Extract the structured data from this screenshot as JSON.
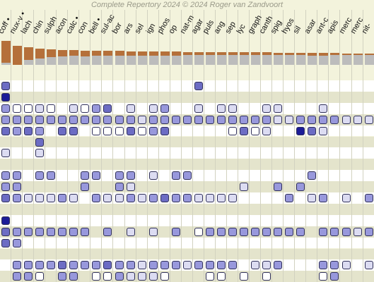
{
  "copyright": "Complete Repertory 2024 © 2024 Roger van Zandvoort",
  "colors": {
    "background": "#f3f3dc",
    "row_alt": "#ffffff",
    "row_section": "#e4e4cc",
    "score_bar_top": "#b5703a",
    "score_bar_bottom": "#bcbcbc",
    "grade_1": "#dcdcf2",
    "grade_2": "#9898dc",
    "grade_3": "#6c6cc4",
    "grade_4": "#1c1c98",
    "grade_0": "#ffffff"
  },
  "remedies": [
    {
      "name": "coff",
      "dot": true,
      "score": 0.84,
      "weight": 0.42
    },
    {
      "name": "nux-v",
      "dot": true,
      "score": 0.68,
      "weight": 0.56
    },
    {
      "name": "lach",
      "dot": false,
      "score": 0.62,
      "weight": 0.32
    },
    {
      "name": "chin",
      "dot": false,
      "score": 0.58,
      "weight": 0.28
    },
    {
      "name": "sulph",
      "dot": false,
      "score": 0.55,
      "weight": 0.22
    },
    {
      "name": "acon",
      "dot": false,
      "score": 0.52,
      "weight": 0.2
    },
    {
      "name": "calc",
      "dot": true,
      "score": 0.52,
      "weight": 0.18
    },
    {
      "name": "con",
      "dot": false,
      "score": 0.5,
      "weight": 0.18
    },
    {
      "name": "bell",
      "dot": true,
      "score": 0.5,
      "weight": 0.17
    },
    {
      "name": "sul-ac",
      "dot": false,
      "score": 0.5,
      "weight": 0.17
    },
    {
      "name": "bor",
      "dot": false,
      "score": 0.5,
      "weight": 0.16
    },
    {
      "name": "ars",
      "dot": false,
      "score": 0.48,
      "weight": 0.15
    },
    {
      "name": "sel",
      "dot": false,
      "score": 0.48,
      "weight": 0.15
    },
    {
      "name": "ign",
      "dot": false,
      "score": 0.48,
      "weight": 0.14
    },
    {
      "name": "phos",
      "dot": false,
      "score": 0.47,
      "weight": 0.13
    },
    {
      "name": "op",
      "dot": false,
      "score": 0.47,
      "weight": 0.13
    },
    {
      "name": "nat-m",
      "dot": false,
      "score": 0.46,
      "weight": 0.12
    },
    {
      "name": "agar",
      "dot": false,
      "score": 0.46,
      "weight": 0.12
    },
    {
      "name": "puls",
      "dot": false,
      "score": 0.45,
      "weight": 0.11
    },
    {
      "name": "ang",
      "dot": false,
      "score": 0.45,
      "weight": 0.11
    },
    {
      "name": "sep",
      "dot": false,
      "score": 0.45,
      "weight": 0.11
    },
    {
      "name": "lyc",
      "dot": false,
      "score": 0.44,
      "weight": 0.1
    },
    {
      "name": "graph",
      "dot": false,
      "score": 0.44,
      "weight": 0.1
    },
    {
      "name": "canth",
      "dot": false,
      "score": 0.44,
      "weight": 0.1
    },
    {
      "name": "spig",
      "dot": false,
      "score": 0.43,
      "weight": 0.09
    },
    {
      "name": "hyos",
      "dot": false,
      "score": 0.43,
      "weight": 0.09
    },
    {
      "name": "sil",
      "dot": false,
      "score": 0.43,
      "weight": 0.09
    },
    {
      "name": "asar",
      "dot": false,
      "score": 0.42,
      "weight": 0.09
    },
    {
      "name": "ant-c",
      "dot": false,
      "score": 0.42,
      "weight": 0.09
    },
    {
      "name": "apis",
      "dot": false,
      "score": 0.42,
      "weight": 0.08
    },
    {
      "name": "merc",
      "dot": false,
      "score": 0.41,
      "weight": 0.08
    },
    {
      "name": "merc",
      "dot": false,
      "score": 0.41,
      "weight": 0.08
    },
    {
      "name": "nit-",
      "dot": false,
      "score": 0.41,
      "weight": 0.08
    }
  ],
  "rubric_rows": [
    {
      "cells": [
        3,
        0,
        0,
        0,
        0,
        0,
        0,
        0,
        0,
        0,
        0,
        0,
        0,
        0,
        0,
        0,
        0,
        3,
        0,
        0,
        0,
        0,
        0,
        0,
        0,
        0,
        0,
        0,
        0,
        0,
        0,
        0,
        0
      ]
    },
    {
      "cells": [
        4,
        0,
        0,
        0,
        0,
        0,
        0,
        0,
        0,
        0,
        0,
        0,
        0,
        0,
        0,
        0,
        0,
        0,
        0,
        0,
        0,
        0,
        0,
        0,
        0,
        0,
        0,
        0,
        0,
        0,
        0,
        0,
        0
      ]
    },
    {
      "cells": [
        2,
        0,
        0,
        1,
        0,
        0,
        1,
        0,
        2,
        3,
        0,
        1,
        0,
        1,
        2,
        0,
        0,
        1,
        0,
        1,
        1,
        0,
        0,
        1,
        1,
        0,
        0,
        0,
        1,
        0,
        0,
        0,
        0
      ]
    },
    {
      "cells": [
        2,
        2,
        2,
        2,
        2,
        2,
        2,
        2,
        2,
        2,
        2,
        2,
        1,
        2,
        2,
        2,
        2,
        2,
        2,
        2,
        2,
        2,
        2,
        2,
        1,
        1,
        2,
        2,
        2,
        2,
        1,
        1,
        1
      ]
    },
    {
      "cells": [
        3,
        2,
        3,
        2,
        0,
        3,
        3,
        0,
        0,
        0,
        0,
        3,
        0,
        2,
        3,
        0,
        0,
        0,
        0,
        0,
        0,
        3,
        0,
        1,
        0,
        0,
        4,
        3,
        1,
        0,
        0,
        0,
        0
      ]
    },
    {
      "cells": [
        0,
        0,
        0,
        3,
        0,
        0,
        0,
        0,
        0,
        0,
        0,
        0,
        0,
        0,
        0,
        0,
        0,
        0,
        0,
        0,
        0,
        0,
        0,
        0,
        0,
        0,
        0,
        0,
        0,
        0,
        0,
        0,
        0
      ]
    },
    {
      "cells": [
        1,
        0,
        0,
        1,
        0,
        0,
        0,
        0,
        0,
        0,
        0,
        0,
        0,
        0,
        0,
        0,
        0,
        0,
        0,
        0,
        0,
        0,
        0,
        0,
        0,
        0,
        0,
        0,
        0,
        0,
        0,
        0,
        0
      ]
    },
    {
      "cells": [
        0,
        0,
        0,
        0,
        0,
        0,
        0,
        0,
        0,
        0,
        0,
        0,
        0,
        0,
        0,
        0,
        0,
        0,
        0,
        0,
        0,
        0,
        0,
        0,
        0,
        0,
        0,
        0,
        0,
        0,
        0,
        0,
        0
      ]
    },
    {
      "cells": [
        2,
        2,
        0,
        2,
        2,
        0,
        0,
        2,
        2,
        0,
        2,
        2,
        0,
        1,
        0,
        2,
        2,
        0,
        0,
        0,
        0,
        0,
        0,
        0,
        0,
        0,
        0,
        2,
        0,
        0,
        0,
        0,
        0
      ]
    },
    {
      "cells": [
        2,
        2,
        0,
        0,
        0,
        0,
        0,
        2,
        0,
        0,
        2,
        1,
        0,
        0,
        0,
        0,
        0,
        0,
        0,
        0,
        0,
        1,
        0,
        0,
        2,
        0,
        2,
        0,
        0,
        0,
        0,
        0,
        0
      ]
    },
    {
      "cells": [
        3,
        2,
        1,
        1,
        1,
        2,
        1,
        0,
        2,
        1,
        1,
        2,
        1,
        2,
        3,
        2,
        2,
        1,
        1,
        1,
        1,
        0,
        0,
        0,
        0,
        2,
        0,
        1,
        2,
        0,
        1,
        0,
        2
      ]
    },
    {
      "cells": [
        0,
        0,
        0,
        0,
        0,
        0,
        0,
        0,
        0,
        0,
        0,
        0,
        0,
        0,
        0,
        0,
        0,
        0,
        0,
        0,
        0,
        0,
        0,
        0,
        0,
        0,
        0,
        0,
        0,
        0,
        0,
        0,
        0
      ]
    },
    {
      "cells": [
        4,
        0,
        0,
        0,
        0,
        0,
        0,
        0,
        0,
        0,
        0,
        0,
        0,
        0,
        0,
        0,
        0,
        0,
        0,
        0,
        0,
        0,
        0,
        0,
        0,
        0,
        0,
        0,
        0,
        0,
        0,
        0,
        0
      ]
    },
    {
      "cells": [
        3,
        2,
        2,
        2,
        2,
        2,
        2,
        2,
        0,
        2,
        0,
        1,
        0,
        1,
        0,
        2,
        0,
        0,
        2,
        2,
        2,
        2,
        2,
        2,
        2,
        2,
        2,
        0,
        2,
        2,
        2,
        1,
        2
      ]
    },
    {
      "cells": [
        3,
        2,
        0,
        0,
        0,
        0,
        0,
        0,
        0,
        0,
        0,
        0,
        0,
        0,
        0,
        0,
        0,
        0,
        0,
        0,
        0,
        0,
        0,
        0,
        0,
        0,
        0,
        0,
        0,
        0,
        0,
        0,
        0
      ]
    },
    {
      "cells": [
        0,
        0,
        0,
        0,
        0,
        0,
        0,
        0,
        0,
        0,
        0,
        0,
        0,
        0,
        0,
        0,
        0,
        0,
        0,
        0,
        0,
        0,
        0,
        0,
        0,
        0,
        0,
        0,
        0,
        0,
        0,
        0,
        0
      ]
    },
    {
      "cells": [
        0,
        2,
        2,
        2,
        2,
        3,
        2,
        2,
        2,
        3,
        2,
        2,
        1,
        2,
        2,
        2,
        1,
        2,
        2,
        2,
        2,
        0,
        1,
        1,
        2,
        0,
        0,
        0,
        2,
        2,
        1,
        0,
        1
      ]
    },
    {
      "cells": [
        0,
        2,
        2,
        0,
        0,
        2,
        2,
        0,
        0,
        0,
        2,
        1,
        1,
        1,
        0,
        0,
        0,
        0,
        0,
        0,
        0,
        0,
        0,
        0,
        0,
        0,
        0,
        0,
        0,
        2,
        0,
        0,
        0
      ]
    }
  ]
}
